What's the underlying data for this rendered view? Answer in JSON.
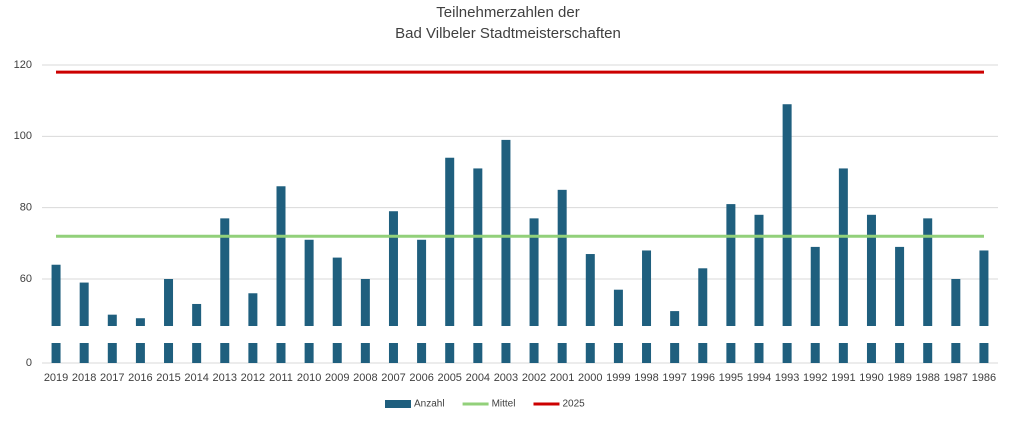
{
  "chart_data": {
    "type": "bar",
    "title": [
      "Teilnehmerzahlen der",
      "Bad Vilbeler Stadtmeisterschaften"
    ],
    "categories": [
      "2019",
      "2018",
      "2017",
      "2016",
      "2015",
      "2014",
      "2013",
      "2012",
      "2011",
      "2010",
      "2009",
      "2008",
      "2007",
      "2006",
      "2005",
      "2004",
      "2003",
      "2002",
      "2001",
      "2000",
      "1999",
      "1998",
      "1997",
      "1996",
      "1995",
      "1994",
      "1993",
      "1992",
      "1991",
      "1990",
      "1989",
      "1988",
      "1987",
      "1986"
    ],
    "series": [
      {
        "name": "Anzahl",
        "type": "bar",
        "color": "#1f5f7e",
        "values": [
          64,
          59,
          50,
          49,
          60,
          53,
          77,
          56,
          86,
          71,
          66,
          60,
          79,
          71,
          94,
          91,
          99,
          77,
          85,
          67,
          57,
          68,
          51,
          63,
          81,
          78,
          109,
          69,
          91,
          78,
          69,
          77,
          60,
          68
        ]
      },
      {
        "name": "Mittel",
        "type": "line",
        "color": "#92d07a",
        "values": [
          72,
          72,
          72,
          72,
          72,
          72,
          72,
          72,
          72,
          72,
          72,
          72,
          72,
          72,
          72,
          72,
          72,
          72,
          72,
          72,
          72,
          72,
          72,
          72,
          72,
          72,
          72,
          72,
          72,
          72,
          72,
          72,
          72,
          72
        ]
      },
      {
        "name": "2025",
        "type": "line",
        "color": "#cc0000",
        "values": [
          118,
          118,
          118,
          118,
          118,
          118,
          118,
          118,
          118,
          118,
          118,
          118,
          118,
          118,
          118,
          118,
          118,
          118,
          118,
          118,
          118,
          118,
          118,
          118,
          118,
          118,
          118,
          118,
          118,
          118,
          118,
          118,
          118,
          118
        ]
      }
    ],
    "ylim": [
      0,
      120
    ],
    "yticks": [
      0,
      60,
      80,
      100,
      120
    ],
    "grid": true,
    "axis_break": true,
    "legend": "bottom"
  }
}
